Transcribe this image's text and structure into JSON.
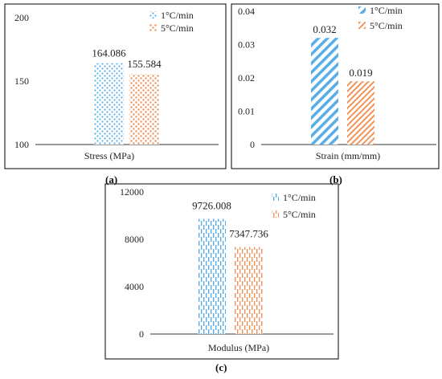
{
  "colors": {
    "series_1": "#5aaee8",
    "series_2": "#f0935a",
    "frame": "#000000",
    "axis": "#333333"
  },
  "chart_data": [
    {
      "type": "bar",
      "panel": "(a)",
      "xlabel": "Stress (MPa)",
      "ylabel": "",
      "ylim": [
        100,
        200
      ],
      "yticks": [
        100,
        150,
        200
      ],
      "grid": false,
      "legend_placement": "top-right",
      "series": [
        {
          "name": "1°C/min",
          "values": [
            164.086
          ],
          "label": "164.086",
          "pattern": "dots"
        },
        {
          "name": "5°C/min",
          "values": [
            155.584
          ],
          "label": "155.584",
          "pattern": "dots"
        }
      ]
    },
    {
      "type": "bar",
      "panel": "(b)",
      "xlabel": "Strain (mm/mm)",
      "ylabel": "",
      "ylim": [
        0,
        0.04
      ],
      "yticks": [
        0,
        0.01,
        0.02,
        0.03,
        0.04
      ],
      "ytick_labels": [
        "0",
        "0.01",
        "0.02",
        "0.03",
        "0.04"
      ],
      "grid": false,
      "legend_placement": "top-right",
      "series": [
        {
          "name": "1°C/min",
          "values": [
            0.032
          ],
          "label": "0.032",
          "pattern": "wide-diagonal"
        },
        {
          "name": "5°C/min",
          "values": [
            0.019
          ],
          "label": "0.019",
          "pattern": "diagonal"
        }
      ]
    },
    {
      "type": "bar",
      "panel": "(c)",
      "xlabel": "Modulus (MPa)",
      "ylabel": "",
      "ylim": [
        0,
        12000
      ],
      "yticks": [
        0,
        4000,
        8000,
        12000
      ],
      "grid": false,
      "legend_placement": "top-right",
      "series": [
        {
          "name": "1°C/min",
          "values": [
            9726.008
          ],
          "label": "9726.008",
          "pattern": "dashed-vertical"
        },
        {
          "name": "5°C/min",
          "values": [
            7347.736
          ],
          "label": "7347.736",
          "pattern": "dashed-vertical"
        }
      ]
    }
  ]
}
